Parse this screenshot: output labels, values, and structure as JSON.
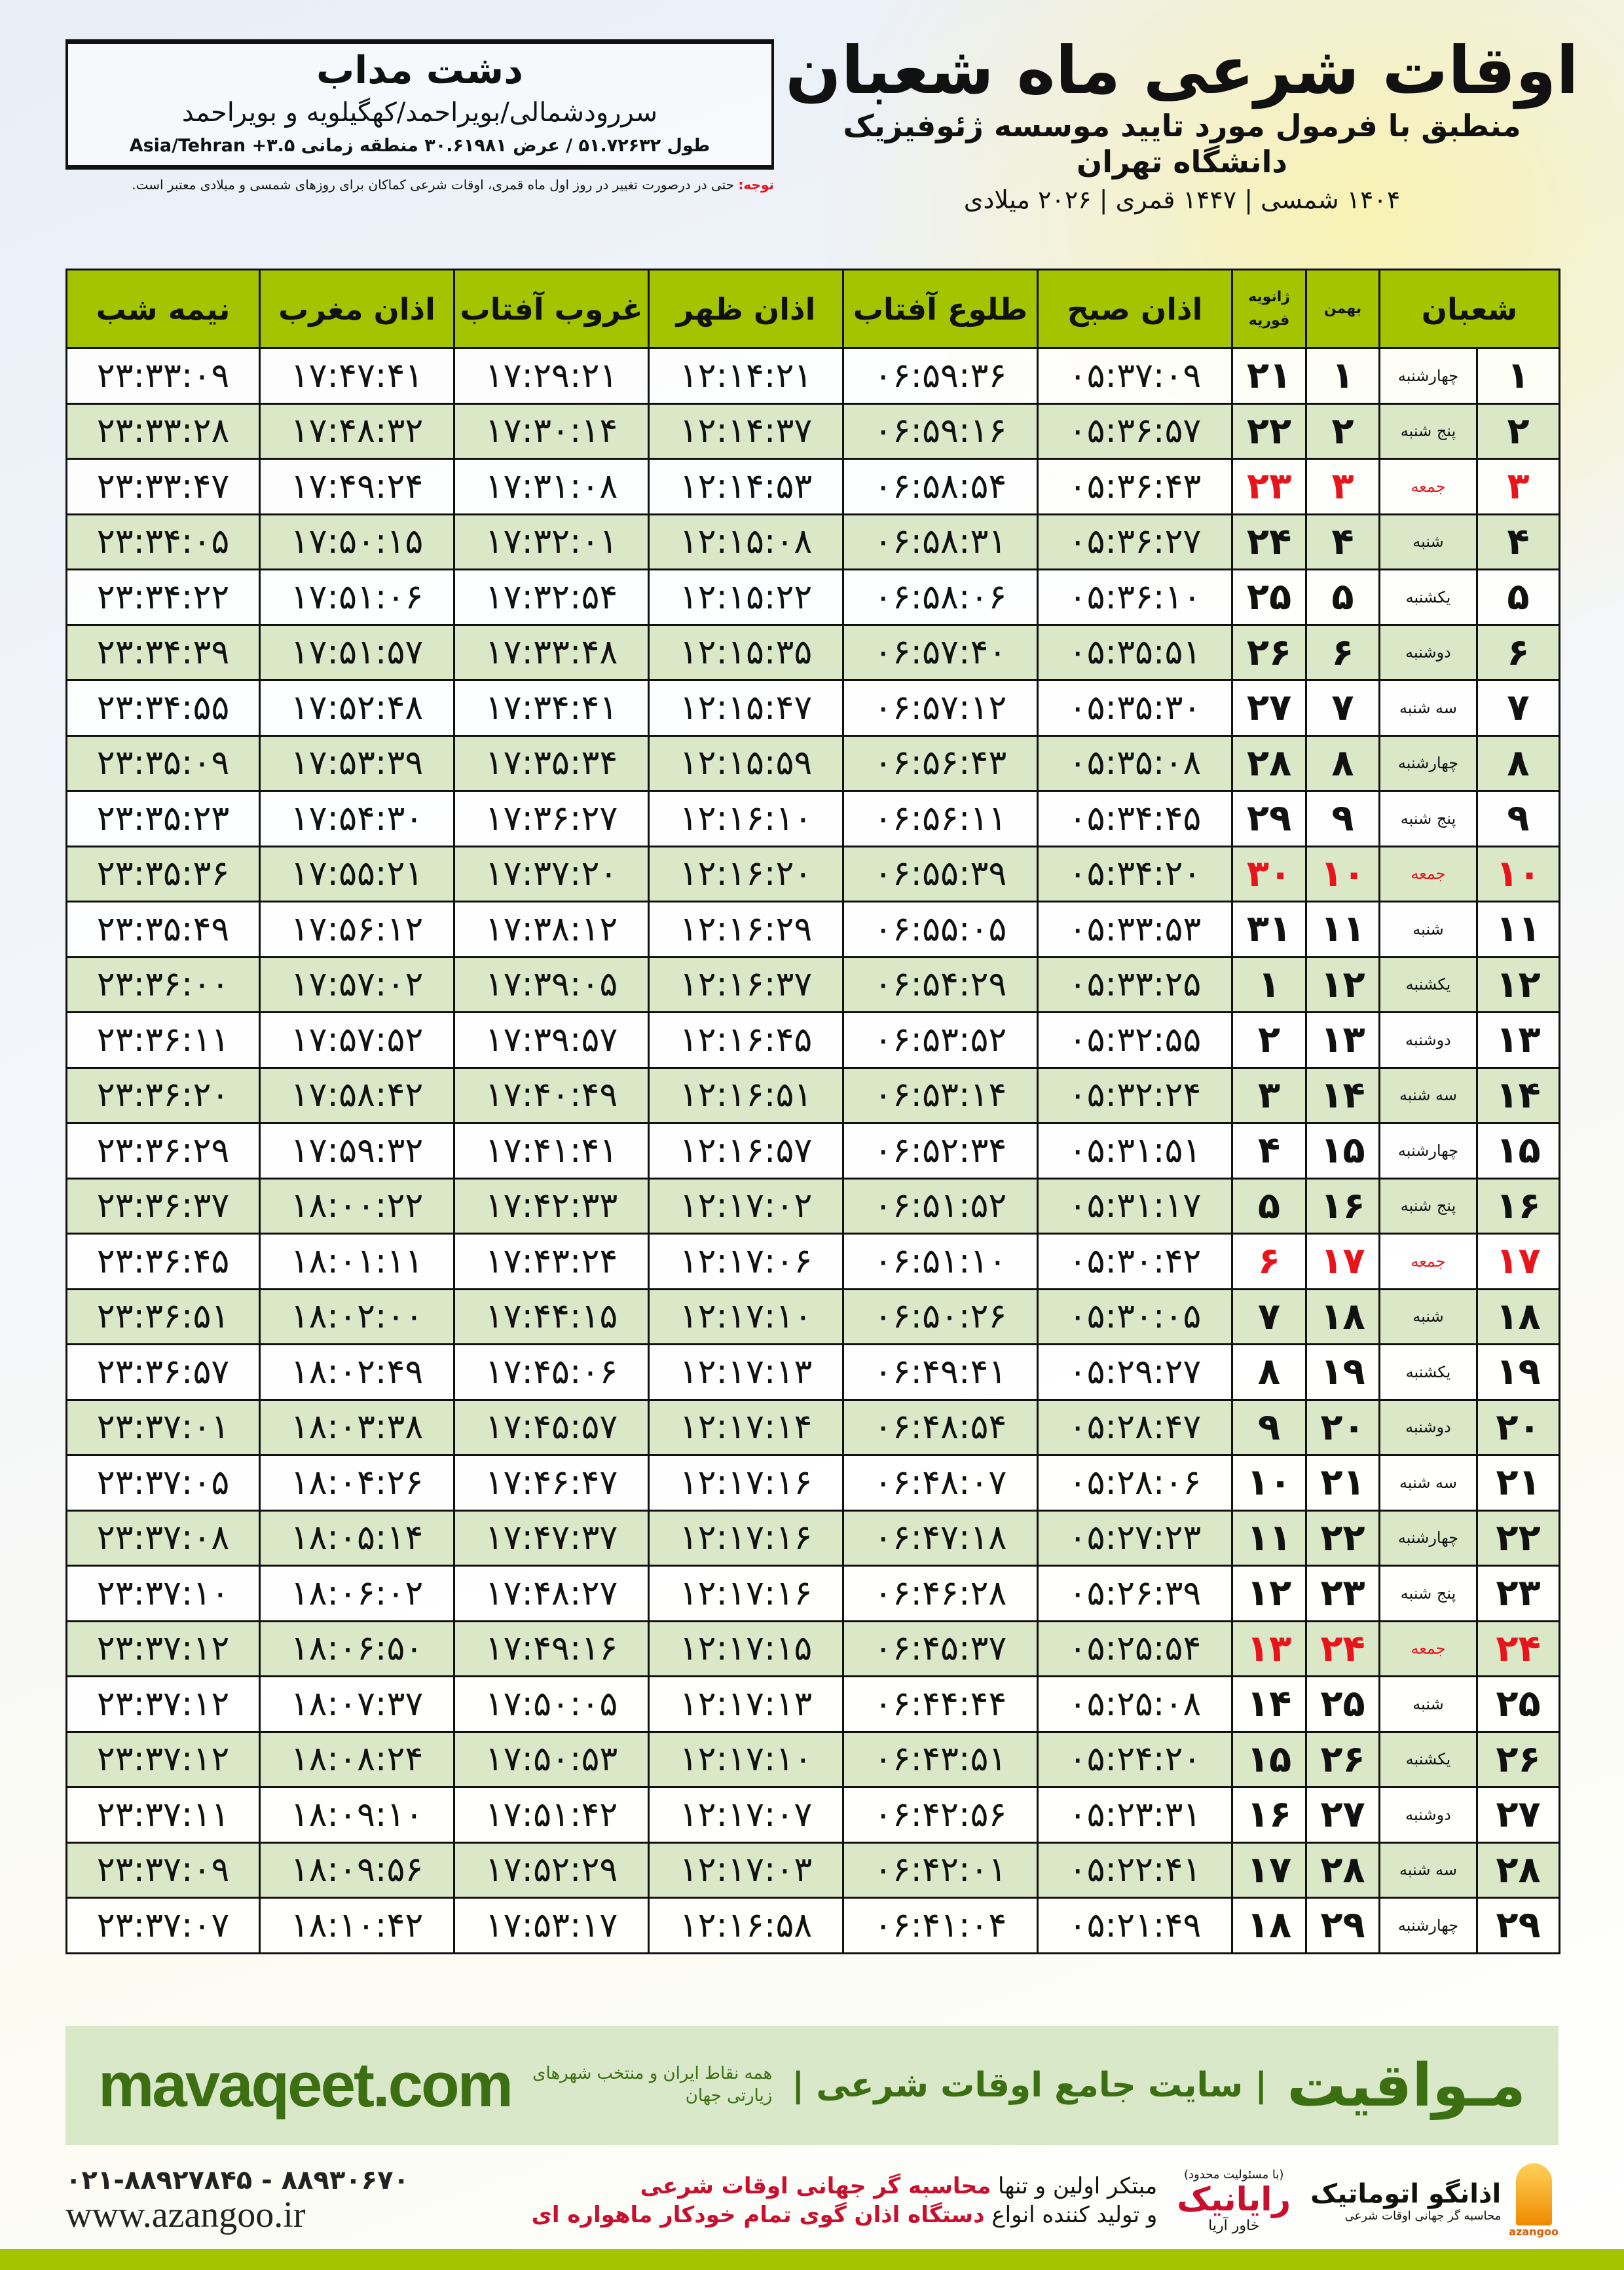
{
  "header": {
    "city": "دشت مداب",
    "region": "سررودشمالی/بویراحمد/کهگیلویه و بویراحمد",
    "coords": "طول ۵۱.۷۲۶۳۲ / عرض ۳۰.۶۱۹۸۱ منطقه زمانی Asia/Tehran +۳.۵",
    "title": "اوقات شرعی ماه شعبان",
    "subtitle": "منطبق با فرمول مورد تایید موسسه ژئوفیزیک دانشگاه تهران",
    "years": "۱۴۰۴ شمسی | ۱۴۴۷ قمری | ۲۰۲۶ میلادی",
    "note_label": "توجه:",
    "note_text": " حتی در درصورت تغییر در روز اول ماه قمری، اوقات شرعی کماکان برای روزهای شمسی و میلادی معتبر است."
  },
  "colors": {
    "header_green": "#a4c400",
    "row_green": "#dbe8c8",
    "friday_red": "#e8141b",
    "brand_green": "#3c6e12"
  },
  "table": {
    "columns": {
      "shaban": "شعبان",
      "bahman": "بهمن",
      "gregorian_top": "ژانویه",
      "gregorian_bottom": "فوریه",
      "fajr": "اذان صبح",
      "sunrise": "طلوع آفتاب",
      "dhuhr": "اذان ظهر",
      "sunset": "غروب آفتاب",
      "maghrib": "اذان مغرب",
      "midnight": "نیمه شب"
    },
    "rows": [
      [
        "۱",
        "چهارشنبه",
        "۱",
        "۲۱",
        "۰۵:۳۷:۰۹",
        "۰۶:۵۹:۳۶",
        "۱۲:۱۴:۲۱",
        "۱۷:۲۹:۲۱",
        "۱۷:۴۷:۴۱",
        "۲۳:۳۳:۰۹"
      ],
      [
        "۲",
        "پنج شنبه",
        "۲",
        "۲۲",
        "۰۵:۳۶:۵۷",
        "۰۶:۵۹:۱۶",
        "۱۲:۱۴:۳۷",
        "۱۷:۳۰:۱۴",
        "۱۷:۴۸:۳۲",
        "۲۳:۳۳:۲۸"
      ],
      [
        "۳",
        "جمعه",
        "۳",
        "۲۳",
        "۰۵:۳۶:۴۳",
        "۰۶:۵۸:۵۴",
        "۱۲:۱۴:۵۳",
        "۱۷:۳۱:۰۸",
        "۱۷:۴۹:۲۴",
        "۲۳:۳۳:۴۷"
      ],
      [
        "۴",
        "شنبه",
        "۴",
        "۲۴",
        "۰۵:۳۶:۲۷",
        "۰۶:۵۸:۳۱",
        "۱۲:۱۵:۰۸",
        "۱۷:۳۲:۰۱",
        "۱۷:۵۰:۱۵",
        "۲۳:۳۴:۰۵"
      ],
      [
        "۵",
        "یکشنبه",
        "۵",
        "۲۵",
        "۰۵:۳۶:۱۰",
        "۰۶:۵۸:۰۶",
        "۱۲:۱۵:۲۲",
        "۱۷:۳۲:۵۴",
        "۱۷:۵۱:۰۶",
        "۲۳:۳۴:۲۲"
      ],
      [
        "۶",
        "دوشنبه",
        "۶",
        "۲۶",
        "۰۵:۳۵:۵۱",
        "۰۶:۵۷:۴۰",
        "۱۲:۱۵:۳۵",
        "۱۷:۳۳:۴۸",
        "۱۷:۵۱:۵۷",
        "۲۳:۳۴:۳۹"
      ],
      [
        "۷",
        "سه شنبه",
        "۷",
        "۲۷",
        "۰۵:۳۵:۳۰",
        "۰۶:۵۷:۱۲",
        "۱۲:۱۵:۴۷",
        "۱۷:۳۴:۴۱",
        "۱۷:۵۲:۴۸",
        "۲۳:۳۴:۵۵"
      ],
      [
        "۸",
        "چهارشنبه",
        "۸",
        "۲۸",
        "۰۵:۳۵:۰۸",
        "۰۶:۵۶:۴۳",
        "۱۲:۱۵:۵۹",
        "۱۷:۳۵:۳۴",
        "۱۷:۵۳:۳۹",
        "۲۳:۳۵:۰۹"
      ],
      [
        "۹",
        "پنج شنبه",
        "۹",
        "۲۹",
        "۰۵:۳۴:۴۵",
        "۰۶:۵۶:۱۱",
        "۱۲:۱۶:۱۰",
        "۱۷:۳۶:۲۷",
        "۱۷:۵۴:۳۰",
        "۲۳:۳۵:۲۳"
      ],
      [
        "۱۰",
        "جمعه",
        "۱۰",
        "۳۰",
        "۰۵:۳۴:۲۰",
        "۰۶:۵۵:۳۹",
        "۱۲:۱۶:۲۰",
        "۱۷:۳۷:۲۰",
        "۱۷:۵۵:۲۱",
        "۲۳:۳۵:۳۶"
      ],
      [
        "۱۱",
        "شنبه",
        "۱۱",
        "۳۱",
        "۰۵:۳۳:۵۳",
        "۰۶:۵۵:۰۵",
        "۱۲:۱۶:۲۹",
        "۱۷:۳۸:۱۲",
        "۱۷:۵۶:۱۲",
        "۲۳:۳۵:۴۹"
      ],
      [
        "۱۲",
        "یکشنبه",
        "۱۲",
        "۱",
        "۰۵:۳۳:۲۵",
        "۰۶:۵۴:۲۹",
        "۱۲:۱۶:۳۷",
        "۱۷:۳۹:۰۵",
        "۱۷:۵۷:۰۲",
        "۲۳:۳۶:۰۰"
      ],
      [
        "۱۳",
        "دوشنبه",
        "۱۳",
        "۲",
        "۰۵:۳۲:۵۵",
        "۰۶:۵۳:۵۲",
        "۱۲:۱۶:۴۵",
        "۱۷:۳۹:۵۷",
        "۱۷:۵۷:۵۲",
        "۲۳:۳۶:۱۱"
      ],
      [
        "۱۴",
        "سه شنبه",
        "۱۴",
        "۳",
        "۰۵:۳۲:۲۴",
        "۰۶:۵۳:۱۴",
        "۱۲:۱۶:۵۱",
        "۱۷:۴۰:۴۹",
        "۱۷:۵۸:۴۲",
        "۲۳:۳۶:۲۰"
      ],
      [
        "۱۵",
        "چهارشنبه",
        "۱۵",
        "۴",
        "۰۵:۳۱:۵۱",
        "۰۶:۵۲:۳۴",
        "۱۲:۱۶:۵۷",
        "۱۷:۴۱:۴۱",
        "۱۷:۵۹:۳۲",
        "۲۳:۳۶:۲۹"
      ],
      [
        "۱۶",
        "پنج شنبه",
        "۱۶",
        "۵",
        "۰۵:۳۱:۱۷",
        "۰۶:۵۱:۵۲",
        "۱۲:۱۷:۰۲",
        "۱۷:۴۲:۳۳",
        "۱۸:۰۰:۲۲",
        "۲۳:۳۶:۳۷"
      ],
      [
        "۱۷",
        "جمعه",
        "۱۷",
        "۶",
        "۰۵:۳۰:۴۲",
        "۰۶:۵۱:۱۰",
        "۱۲:۱۷:۰۶",
        "۱۷:۴۳:۲۴",
        "۱۸:۰۱:۱۱",
        "۲۳:۳۶:۴۵"
      ],
      [
        "۱۸",
        "شنبه",
        "۱۸",
        "۷",
        "۰۵:۳۰:۰۵",
        "۰۶:۵۰:۲۶",
        "۱۲:۱۷:۱۰",
        "۱۷:۴۴:۱۵",
        "۱۸:۰۲:۰۰",
        "۲۳:۳۶:۵۱"
      ],
      [
        "۱۹",
        "یکشنبه",
        "۱۹",
        "۸",
        "۰۵:۲۹:۲۷",
        "۰۶:۴۹:۴۱",
        "۱۲:۱۷:۱۳",
        "۱۷:۴۵:۰۶",
        "۱۸:۰۲:۴۹",
        "۲۳:۳۶:۵۷"
      ],
      [
        "۲۰",
        "دوشنبه",
        "۲۰",
        "۹",
        "۰۵:۲۸:۴۷",
        "۰۶:۴۸:۵۴",
        "۱۲:۱۷:۱۴",
        "۱۷:۴۵:۵۷",
        "۱۸:۰۳:۳۸",
        "۲۳:۳۷:۰۱"
      ],
      [
        "۲۱",
        "سه شنبه",
        "۲۱",
        "۱۰",
        "۰۵:۲۸:۰۶",
        "۰۶:۴۸:۰۷",
        "۱۲:۱۷:۱۶",
        "۱۷:۴۶:۴۷",
        "۱۸:۰۴:۲۶",
        "۲۳:۳۷:۰۵"
      ],
      [
        "۲۲",
        "چهارشنبه",
        "۲۲",
        "۱۱",
        "۰۵:۲۷:۲۳",
        "۰۶:۴۷:۱۸",
        "۱۲:۱۷:۱۶",
        "۱۷:۴۷:۳۷",
        "۱۸:۰۵:۱۴",
        "۲۳:۳۷:۰۸"
      ],
      [
        "۲۳",
        "پنج شنبه",
        "۲۳",
        "۱۲",
        "۰۵:۲۶:۳۹",
        "۰۶:۴۶:۲۸",
        "۱۲:۱۷:۱۶",
        "۱۷:۴۸:۲۷",
        "۱۸:۰۶:۰۲",
        "۲۳:۳۷:۱۰"
      ],
      [
        "۲۴",
        "جمعه",
        "۲۴",
        "۱۳",
        "۰۵:۲۵:۵۴",
        "۰۶:۴۵:۳۷",
        "۱۲:۱۷:۱۵",
        "۱۷:۴۹:۱۶",
        "۱۸:۰۶:۵۰",
        "۲۳:۳۷:۱۲"
      ],
      [
        "۲۵",
        "شنبه",
        "۲۵",
        "۱۴",
        "۰۵:۲۵:۰۸",
        "۰۶:۴۴:۴۴",
        "۱۲:۱۷:۱۳",
        "۱۷:۵۰:۰۵",
        "۱۸:۰۷:۳۷",
        "۲۳:۳۷:۱۲"
      ],
      [
        "۲۶",
        "یکشنبه",
        "۲۶",
        "۱۵",
        "۰۵:۲۴:۲۰",
        "۰۶:۴۳:۵۱",
        "۱۲:۱۷:۱۰",
        "۱۷:۵۰:۵۳",
        "۱۸:۰۸:۲۴",
        "۲۳:۳۷:۱۲"
      ],
      [
        "۲۷",
        "دوشنبه",
        "۲۷",
        "۱۶",
        "۰۵:۲۳:۳۱",
        "۰۶:۴۲:۵۶",
        "۱۲:۱۷:۰۷",
        "۱۷:۵۱:۴۲",
        "۱۸:۰۹:۱۰",
        "۲۳:۳۷:۱۱"
      ],
      [
        "۲۸",
        "سه شنبه",
        "۲۸",
        "۱۷",
        "۰۵:۲۲:۴۱",
        "۰۶:۴۲:۰۱",
        "۱۲:۱۷:۰۳",
        "۱۷:۵۲:۲۹",
        "۱۸:۰۹:۵۶",
        "۲۳:۳۷:۰۹"
      ],
      [
        "۲۹",
        "چهارشنبه",
        "۲۹",
        "۱۸",
        "۰۵:۲۱:۴۹",
        "۰۶:۴۱:۰۴",
        "۱۲:۱۶:۵۸",
        "۱۷:۵۳:۱۷",
        "۱۸:۱۰:۴۲",
        "۲۳:۳۷:۰۷"
      ]
    ]
  },
  "footer": {
    "brand": "مـواقیت",
    "tagline": "| سایت جامع اوقات شرعی |",
    "tagline_sub": "همه نقاط ایران و منتخب شهرهای زیارتی جهان",
    "site": "mavaqeet.com",
    "logo_azangoo": "اذانگو اتوماتیک",
    "logo_azangoo_sub": "محاسبه گر جهانی اوقات شرعی",
    "logo_azangoo_latin": "azangoo",
    "logo_rayanik": "رایانیک",
    "logo_rayanik_sub": "خاور آریا",
    "logo_rayanik_note": "(با مسئولیت محدود)",
    "promo_line1_a": "مبتکر اولین و تنها ",
    "promo_line1_b": "محاسبه گر جهانی اوقات شرعی",
    "promo_line2_a": "و تولید کننده انواع ",
    "promo_line2_b": "دستگاه اذان گوی تمام خودکار ماهواره ای",
    "phone": "۰۲۱-۸۸۹۲۷۸۴۵ - ۸۸۹۳۰۶۷۰",
    "web": "www.azangoo.ir"
  }
}
